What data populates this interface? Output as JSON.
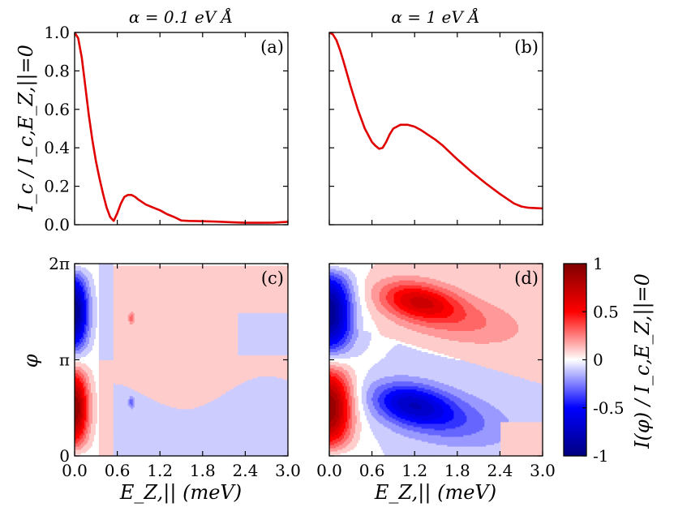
{
  "figure": {
    "titles": [
      "α = 0.1 eV Å",
      "α = 1 eV Å"
    ],
    "panel_labels": [
      "(a)",
      "(b)",
      "(c)",
      "(d)"
    ],
    "top_ylabel": "I_c / I_c,E_Z,||=0",
    "bottom_ylabel": "φ",
    "xlabel": "E_Z,|| (meV)",
    "colorbar_label": "I(φ) / I_c,E_Z,||=0",
    "colors": {
      "curve": "#e00000",
      "negative": "#0000ff",
      "positive": "#ff0000",
      "neutral": "#ffffff"
    }
  },
  "chart_data": [
    {
      "type": "line",
      "panel": "(a)",
      "title": "α = 0.1 eV Å",
      "xlabel": "",
      "ylabel": "I_c / I_c,E_Z,||=0",
      "xlim": [
        0,
        3.0
      ],
      "ylim": [
        0,
        1.0
      ],
      "xticks": [
        0.0,
        0.6,
        1.2,
        1.8,
        2.4,
        3.0
      ],
      "yticks": [
        "0.0",
        "0.2",
        "0.4",
        "0.6",
        "0.8",
        "1.0"
      ],
      "x": [
        0.0,
        0.05,
        0.1,
        0.15,
        0.2,
        0.25,
        0.3,
        0.35,
        0.4,
        0.45,
        0.5,
        0.55,
        0.6,
        0.65,
        0.7,
        0.75,
        0.8,
        0.85,
        0.9,
        1.0,
        1.1,
        1.2,
        1.3,
        1.4,
        1.5,
        1.6,
        1.8,
        2.0,
        2.2,
        2.4,
        2.6,
        2.8,
        3.0
      ],
      "y": [
        1.0,
        0.97,
        0.87,
        0.72,
        0.57,
        0.44,
        0.33,
        0.24,
        0.16,
        0.09,
        0.04,
        0.02,
        0.06,
        0.11,
        0.145,
        0.155,
        0.155,
        0.145,
        0.13,
        0.105,
        0.09,
        0.075,
        0.055,
        0.04,
        0.022,
        0.02,
        0.018,
        0.016,
        0.013,
        0.01,
        0.01,
        0.011,
        0.015
      ]
    },
    {
      "type": "line",
      "panel": "(b)",
      "title": "α = 1 eV Å",
      "xlabel": "",
      "ylabel": "",
      "xlim": [
        0,
        3.0
      ],
      "ylim": [
        0,
        1.0
      ],
      "xticks": [
        0.0,
        0.6,
        1.2,
        1.8,
        2.4,
        3.0
      ],
      "x": [
        0.0,
        0.05,
        0.1,
        0.15,
        0.2,
        0.3,
        0.4,
        0.5,
        0.6,
        0.65,
        0.7,
        0.75,
        0.8,
        0.85,
        0.9,
        1.0,
        1.1,
        1.2,
        1.3,
        1.4,
        1.5,
        1.6,
        1.8,
        2.0,
        2.2,
        2.4,
        2.6,
        2.7,
        2.8,
        3.0
      ],
      "y": [
        1.0,
        0.99,
        0.96,
        0.91,
        0.85,
        0.72,
        0.6,
        0.5,
        0.43,
        0.41,
        0.395,
        0.4,
        0.43,
        0.47,
        0.5,
        0.52,
        0.52,
        0.51,
        0.49,
        0.465,
        0.44,
        0.41,
        0.34,
        0.275,
        0.215,
        0.16,
        0.11,
        0.095,
        0.088,
        0.085
      ]
    },
    {
      "type": "heatmap",
      "panel": "(c)",
      "xlabel": "E_Z,|| (meV)",
      "ylabel": "φ",
      "xlim": [
        0,
        3.0
      ],
      "ylim": [
        0,
        6.283
      ],
      "xticks": [
        "0.0",
        "0.6",
        "1.2",
        "1.8",
        "2.4",
        "3.0"
      ],
      "yticks": [
        "0",
        "π",
        "2π"
      ],
      "zlim": [
        -1,
        1
      ],
      "description_values": "positive lobe near φ≈π/2 at E≈0 (peak ≈0.9), negative lobe near φ≈3π/2 at E≈0 (≈-0.9); small islands near E≈0.8; weak +/-0.1 background beyond E≈0.6"
    },
    {
      "type": "heatmap",
      "panel": "(d)",
      "xlabel": "E_Z,|| (meV)",
      "ylabel": "",
      "xlim": [
        0,
        3.0
      ],
      "ylim": [
        0,
        6.283
      ],
      "xticks": [
        "0.0",
        "0.6",
        "1.2",
        "1.8",
        "2.4",
        "3.0"
      ],
      "zlim": [
        -1,
        1
      ],
      "description_values": "positive lobe near φ≈π/2 at E≈0, negative lobe near φ≈3π/2 at E≈0; secondary negative lobe centred E≈1.1, φ≈0.55π and positive lobe E≈1.2, φ≈1.6π, both tilting downward with E"
    },
    {
      "type": "colorbar",
      "label": "I(φ) / I_c,E_Z,||=0",
      "ticks": [
        "1",
        "0.5",
        "0",
        "-0.5",
        "-1"
      ],
      "range": [
        -1,
        1
      ]
    }
  ]
}
